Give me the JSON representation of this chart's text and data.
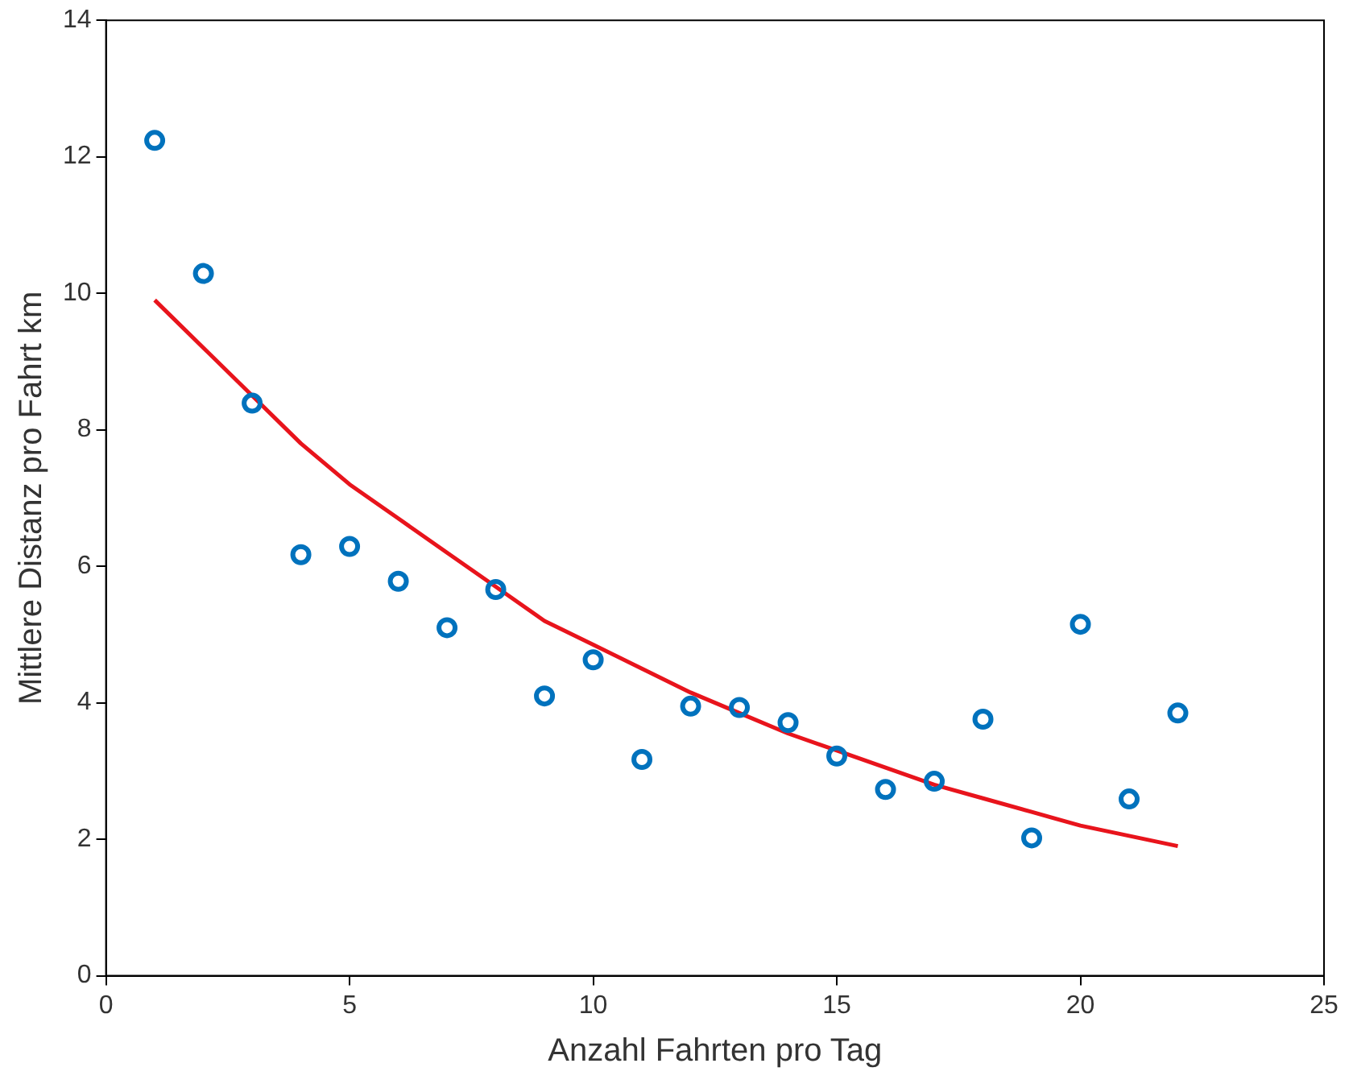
{
  "chart_data": {
    "type": "scatter",
    "xlabel": "Anzahl Fahrten pro Tag",
    "ylabel": "Mittlere Distanz pro Fahrt km",
    "xlim": [
      0,
      25
    ],
    "xticks": [
      0,
      5,
      10,
      15,
      20,
      25
    ],
    "ylim": [
      0,
      14
    ],
    "yticks": [
      0,
      2,
      4,
      6,
      8,
      10,
      12,
      14
    ],
    "grid": false,
    "legend": false,
    "marker": "circle",
    "series": [
      {
        "type": "scatter",
        "color": "#0072bd",
        "x": [
          1,
          2,
          3,
          4,
          5,
          6,
          7,
          8,
          9,
          10,
          11,
          12,
          13,
          14,
          15,
          16,
          17,
          18,
          19,
          20,
          21,
          22
        ],
        "values": [
          12.24,
          10.29,
          8.39,
          6.17,
          6.29,
          5.78,
          5.1,
          5.66,
          4.1,
          4.63,
          3.17,
          3.95,
          3.93,
          3.71,
          3.22,
          2.73,
          2.85,
          3.76,
          2.02,
          5.15,
          2.59,
          3.85
        ]
      },
      {
        "type": "line",
        "color": "#e8141c",
        "marker": "none",
        "x": [
          1,
          2,
          3,
          4,
          5,
          6,
          7,
          8,
          9,
          10,
          11,
          12,
          13,
          14,
          15,
          16,
          17,
          18,
          19,
          20,
          21,
          22
        ],
        "values": [
          9.9,
          9.2,
          8.5,
          7.8,
          7.2,
          6.7,
          6.2,
          5.7,
          5.2,
          4.85,
          4.5,
          4.15,
          3.85,
          3.55,
          3.3,
          3.05,
          2.8,
          2.6,
          2.4,
          2.2,
          2.05,
          1.9
        ]
      }
    ]
  }
}
